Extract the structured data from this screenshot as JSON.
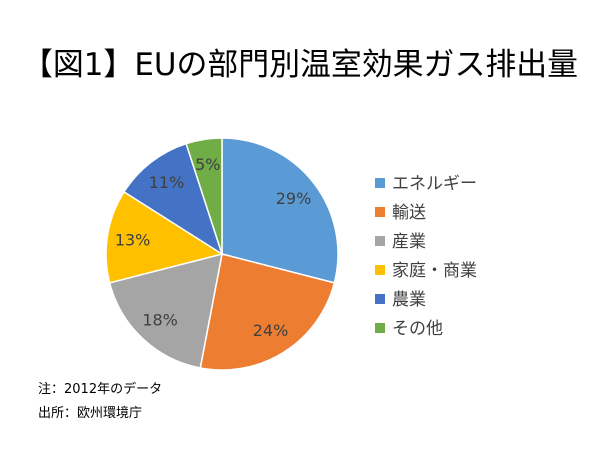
{
  "chart_data": {
    "type": "pie",
    "title": "【図1】EUの部門別温室効果ガス排出量",
    "categories": [
      "エネルギー",
      "輸送",
      "産業",
      "家庭・商業",
      "農業",
      "その他"
    ],
    "values": [
      29,
      24,
      18,
      13,
      11,
      5
    ],
    "data_labels": [
      "29%",
      "24%",
      "18%",
      "13%",
      "11%",
      "5%"
    ],
    "colors": [
      "#5B9BD5",
      "#ED7D31",
      "#A5A5A5",
      "#FFC000",
      "#4472C4",
      "#70AD47"
    ],
    "legend_position": "right"
  },
  "notes": {
    "note": "注：2012年のデータ",
    "source": "出所：欧州環境庁"
  }
}
